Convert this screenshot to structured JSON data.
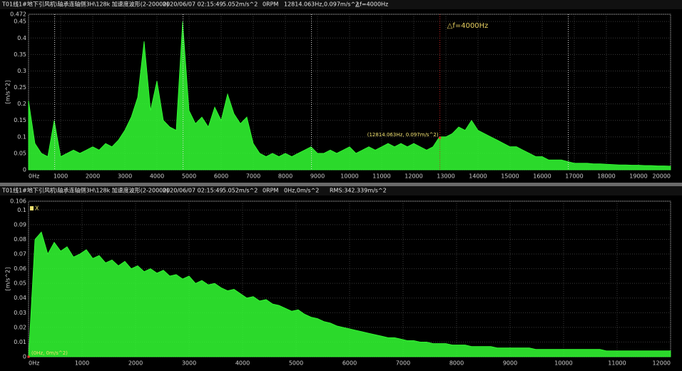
{
  "chart_data": [
    {
      "type": "area",
      "header": [
        "T01线1#地下引风机\\轴承连轴侧3H\\128k 加速度波形(2-20000)",
        "2020/06/07 02:15:49",
        "5.052m/s^2",
        "0RPM",
        "12814.063Hz,0.097m/s^2",
        "△f=4000Hz"
      ],
      "ylabel": "[m/s^2]",
      "annotation": "△f=4000Hz",
      "cursor_label": "(12814.063Hz, 0.097m/s^2)",
      "cursor_point": {
        "x": 12814.063,
        "y": 0.097
      },
      "cursor_lines": [
        814.063,
        4814.063,
        8814.063,
        12814.063,
        16814.063
      ],
      "color": "#33ff33",
      "grid": true,
      "xlim": [
        0,
        20000
      ],
      "ylim": [
        0,
        0.472
      ],
      "xticks": [
        {
          "value": 0,
          "label": "0Hz"
        },
        1000,
        2000,
        3000,
        4000,
        5000,
        6000,
        7000,
        8000,
        9000,
        10000,
        11000,
        12000,
        13000,
        14000,
        15000,
        16000,
        17000,
        18000,
        19000,
        20000
      ],
      "yticks": [
        0,
        0.05,
        0.1,
        0.15,
        0.2,
        0.25,
        0.3,
        0.35,
        0.4,
        0.45,
        0.472
      ],
      "x": [
        0,
        200,
        400,
        600,
        800,
        1000,
        1200,
        1400,
        1600,
        1800,
        2000,
        2200,
        2400,
        2600,
        2800,
        3000,
        3200,
        3400,
        3600,
        3800,
        4000,
        4200,
        4400,
        4600,
        4800,
        5000,
        5200,
        5400,
        5600,
        5800,
        6000,
        6200,
        6400,
        6600,
        6800,
        7000,
        7200,
        7400,
        7600,
        7800,
        8000,
        8200,
        8400,
        8600,
        8800,
        9000,
        9200,
        9400,
        9600,
        9800,
        10000,
        10200,
        10400,
        10600,
        10800,
        11000,
        11200,
        11400,
        11600,
        11800,
        12000,
        12200,
        12400,
        12600,
        12800,
        13000,
        13200,
        13400,
        13600,
        13800,
        14000,
        14200,
        14400,
        14600,
        14800,
        15000,
        15200,
        15400,
        15600,
        15800,
        16000,
        16200,
        16400,
        16600,
        16800,
        17000,
        17200,
        17400,
        17600,
        17800,
        18000,
        18200,
        18400,
        18600,
        18800,
        19000,
        19200,
        19400,
        19600,
        19800,
        20000
      ],
      "values": [
        0.21,
        0.08,
        0.05,
        0.04,
        0.15,
        0.04,
        0.05,
        0.06,
        0.05,
        0.06,
        0.07,
        0.06,
        0.08,
        0.07,
        0.09,
        0.12,
        0.16,
        0.22,
        0.39,
        0.18,
        0.27,
        0.15,
        0.13,
        0.12,
        0.45,
        0.18,
        0.14,
        0.16,
        0.13,
        0.19,
        0.15,
        0.23,
        0.17,
        0.14,
        0.16,
        0.08,
        0.05,
        0.04,
        0.05,
        0.04,
        0.05,
        0.04,
        0.05,
        0.06,
        0.07,
        0.05,
        0.05,
        0.06,
        0.05,
        0.06,
        0.07,
        0.05,
        0.06,
        0.07,
        0.06,
        0.07,
        0.08,
        0.07,
        0.08,
        0.07,
        0.08,
        0.07,
        0.06,
        0.07,
        0.1,
        0.1,
        0.11,
        0.13,
        0.12,
        0.15,
        0.12,
        0.11,
        0.1,
        0.09,
        0.08,
        0.07,
        0.07,
        0.06,
        0.05,
        0.04,
        0.04,
        0.03,
        0.03,
        0.03,
        0.025,
        0.02,
        0.02,
        0.02,
        0.018,
        0.018,
        0.017,
        0.016,
        0.015,
        0.015,
        0.014,
        0.014,
        0.013,
        0.013,
        0.012,
        0.012,
        0.011
      ]
    },
    {
      "type": "area",
      "header": [
        "T01线1#地下引风机\\轴承连轴侧3H\\128k 加速度波形(2-20000)",
        "2020/06/07 02:15:49",
        "5.052m/s^2",
        "0RPM",
        "0Hz,0m/s^2",
        "RMS:342.339m/s^2"
      ],
      "ylabel": "[m/s^2]",
      "cursor_label": "(0Hz, 0m/s^2)",
      "cursor_marker": "X",
      "cursor_point": {
        "x": 0,
        "y": 0
      },
      "color": "#33ff33",
      "grid": true,
      "xlim": [
        0,
        12000
      ],
      "ylim": [
        0,
        0.106
      ],
      "xticks": [
        {
          "value": 0,
          "label": "0Hz"
        },
        1000,
        2000,
        3000,
        4000,
        5000,
        6000,
        7000,
        8000,
        9000,
        10000,
        11000,
        12000
      ],
      "yticks": [
        0,
        0.01,
        0.02,
        0.03,
        0.04,
        0.05,
        0.06,
        0.07,
        0.08,
        0.09,
        0.1,
        0.106
      ],
      "x": [
        0,
        120,
        240,
        360,
        480,
        600,
        720,
        840,
        960,
        1080,
        1200,
        1320,
        1440,
        1560,
        1680,
        1800,
        1920,
        2040,
        2160,
        2280,
        2400,
        2520,
        2640,
        2760,
        2880,
        3000,
        3120,
        3240,
        3360,
        3480,
        3600,
        3720,
        3840,
        3960,
        4080,
        4200,
        4320,
        4440,
        4560,
        4680,
        4800,
        4920,
        5040,
        5160,
        5280,
        5400,
        5520,
        5640,
        5760,
        5880,
        6000,
        6120,
        6240,
        6360,
        6480,
        6600,
        6720,
        6840,
        6960,
        7080,
        7200,
        7320,
        7440,
        7560,
        7680,
        7800,
        7920,
        8040,
        8160,
        8280,
        8400,
        8520,
        8640,
        8760,
        8880,
        9000,
        9120,
        9240,
        9360,
        9480,
        9600,
        9720,
        9840,
        9960,
        10080,
        10200,
        10320,
        10440,
        10560,
        10680,
        10800,
        10920,
        11040,
        11160,
        11280,
        11400,
        11520,
        11640,
        11760,
        11880,
        12000
      ],
      "values": [
        0,
        0.08,
        0.085,
        0.07,
        0.078,
        0.072,
        0.075,
        0.068,
        0.07,
        0.073,
        0.067,
        0.069,
        0.064,
        0.066,
        0.062,
        0.065,
        0.06,
        0.062,
        0.058,
        0.06,
        0.057,
        0.059,
        0.055,
        0.056,
        0.053,
        0.055,
        0.05,
        0.052,
        0.049,
        0.05,
        0.047,
        0.045,
        0.046,
        0.043,
        0.04,
        0.041,
        0.038,
        0.039,
        0.036,
        0.035,
        0.033,
        0.031,
        0.032,
        0.029,
        0.027,
        0.026,
        0.024,
        0.023,
        0.021,
        0.02,
        0.019,
        0.018,
        0.017,
        0.016,
        0.015,
        0.014,
        0.013,
        0.013,
        0.012,
        0.011,
        0.011,
        0.01,
        0.01,
        0.009,
        0.009,
        0.009,
        0.008,
        0.008,
        0.008,
        0.007,
        0.007,
        0.007,
        0.007,
        0.006,
        0.006,
        0.006,
        0.006,
        0.006,
        0.006,
        0.005,
        0.005,
        0.005,
        0.005,
        0.005,
        0.005,
        0.005,
        0.005,
        0.005,
        0.005,
        0.005,
        0.004,
        0.004,
        0.004,
        0.004,
        0.004,
        0.004,
        0.004,
        0.004,
        0.004,
        0.004,
        0.004
      ]
    }
  ]
}
